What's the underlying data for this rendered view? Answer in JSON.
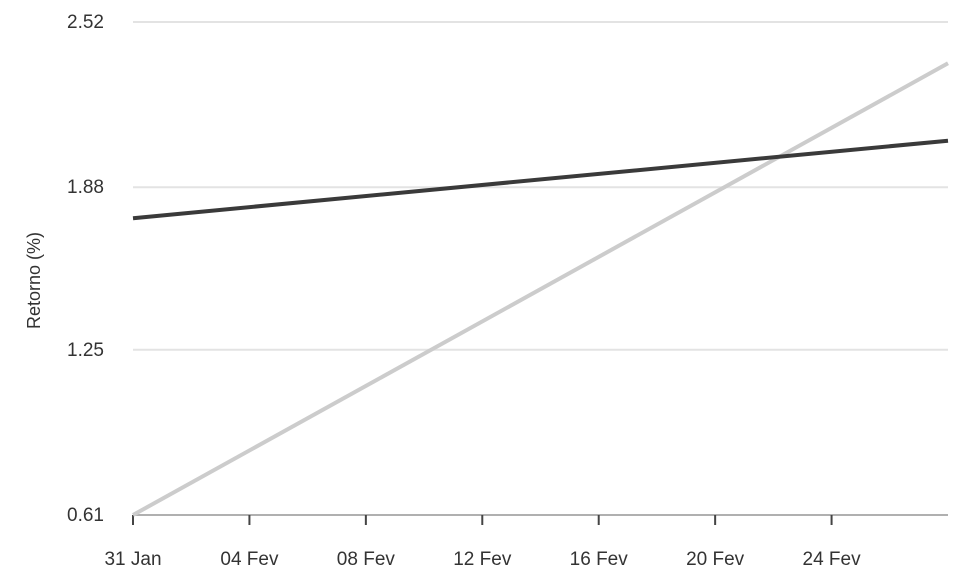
{
  "chart_data": {
    "type": "line",
    "ylabel": "Retorno (%)",
    "xlabel": "",
    "y_ticks": [
      0.61,
      1.25,
      1.88,
      2.52
    ],
    "y_tick_labels": [
      "0.61",
      "1.25",
      "1.88",
      "2.52"
    ],
    "ylim": [
      0.61,
      2.52
    ],
    "x_tick_labels": [
      "31 Jan",
      "04 Fev",
      "08 Fev",
      "12 Fev",
      "16 Fev",
      "20 Fev",
      "24 Fev"
    ],
    "x_ticks": [
      "31 Jan",
      "04 Fev",
      "08 Fev",
      "12 Fev",
      "16 Fev",
      "20 Fev",
      "24 Fev"
    ],
    "x_range": [
      "31 Jan",
      "28 Fev"
    ],
    "grid": true,
    "legend": "none",
    "series": [
      {
        "x": [
          "31 Jan",
          "28 Fev"
        ],
        "values": [
          1.76,
          2.06
        ],
        "color": "#3a3a3a"
      },
      {
        "x": [
          "31 Jan",
          "28 Fev"
        ],
        "values": [
          0.61,
          2.36
        ],
        "color": "#cccccc"
      }
    ]
  }
}
